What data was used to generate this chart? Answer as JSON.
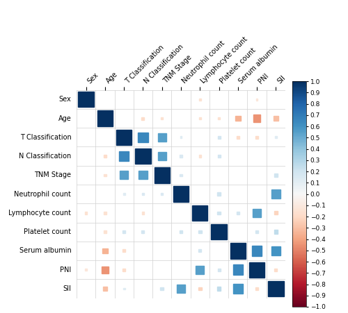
{
  "labels": [
    "Sex",
    "Age",
    "T Classification",
    "N Classification",
    "TNM Stage",
    "Neutrophil count",
    "Lymphocyte count",
    "Platelet count",
    "Serum albumin",
    "PNI",
    "SII"
  ],
  "corr_matrix": [
    [
      1.0,
      null,
      null,
      null,
      null,
      null,
      -0.15,
      null,
      null,
      -0.12,
      null
    ],
    [
      null,
      1.0,
      null,
      -0.18,
      -0.15,
      null,
      -0.15,
      -0.15,
      -0.35,
      -0.45,
      -0.3
    ],
    [
      null,
      null,
      1.0,
      0.65,
      0.55,
      0.12,
      null,
      0.18,
      -0.18,
      -0.18,
      0.12
    ],
    [
      null,
      -0.18,
      0.65,
      1.0,
      0.55,
      0.15,
      -0.15,
      0.18,
      null,
      null,
      null
    ],
    [
      null,
      -0.15,
      0.55,
      0.55,
      1.0,
      0.15,
      null,
      null,
      null,
      null,
      0.2
    ],
    [
      null,
      null,
      0.12,
      0.15,
      0.15,
      1.0,
      null,
      0.2,
      null,
      null,
      0.55
    ],
    [
      -0.15,
      -0.15,
      null,
      -0.15,
      null,
      null,
      1.0,
      0.2,
      0.18,
      0.55,
      -0.22
    ],
    [
      null,
      -0.15,
      0.18,
      0.18,
      null,
      0.2,
      0.2,
      1.0,
      null,
      0.18,
      0.25
    ],
    [
      null,
      -0.35,
      -0.18,
      null,
      null,
      null,
      0.18,
      null,
      1.0,
      0.65,
      0.6
    ],
    [
      -0.12,
      -0.45,
      -0.18,
      null,
      null,
      null,
      0.55,
      0.18,
      0.65,
      1.0,
      -0.18
    ],
    [
      null,
      -0.3,
      0.12,
      null,
      0.2,
      0.55,
      -0.22,
      0.25,
      0.6,
      -0.18,
      1.0
    ]
  ],
  "colorbar_ticks": [
    1,
    0.9,
    0.8,
    0.7,
    0.6,
    0.5,
    0.4,
    0.3,
    0.2,
    0.1,
    0,
    -0.1,
    -0.2,
    -0.3,
    -0.4,
    -0.5,
    -0.6,
    -0.7,
    -0.8,
    -0.9,
    -1
  ],
  "vmin": -1,
  "vmax": 1,
  "background_color": "#ffffff",
  "grid_color": "#d0d0d0",
  "label_fontsize": 7,
  "colorbar_fontsize": 6.5,
  "sq_scale": 0.82
}
